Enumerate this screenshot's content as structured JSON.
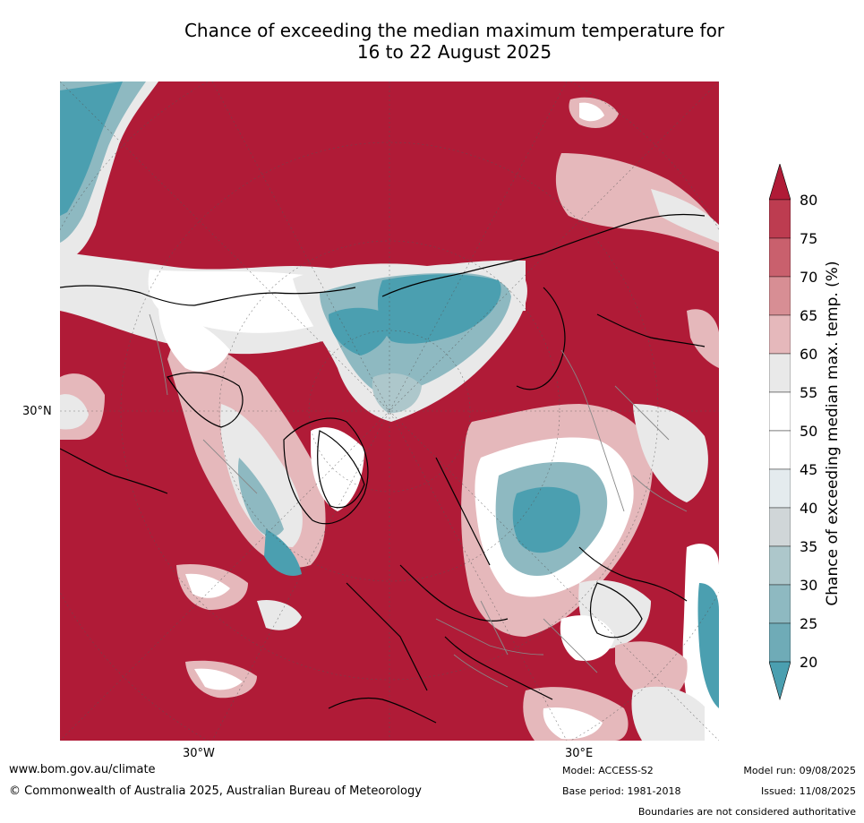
{
  "title": {
    "line1": "Chance of exceeding the median maximum temperature for",
    "line2": "16 to 22 August 2025"
  },
  "map": {
    "projection": "north-polar-stereographic",
    "lat_label": "30°N",
    "lon_labels": [
      "30°W",
      "30°E"
    ],
    "colors": {
      "red_80": "#b01b37",
      "red_75": "#bd3c50",
      "red_70": "#c9606d",
      "red_65": "#d78e94",
      "red_60": "#e5b8bb",
      "neutral_55": "#e9e9e9",
      "white_50": "#ffffff",
      "light_45": "#e4ebee",
      "grey_40": "#d0d6d8",
      "blue_35": "#adc7cb",
      "blue_30": "#8eb9c1",
      "blue_25": "#6fabb7",
      "blue_20": "#4b9fb0",
      "coastline": "#000000",
      "border": "#888888"
    }
  },
  "colorbar": {
    "title": "Chance of exceeding median max. temp. (%)",
    "ticks": [
      "80",
      "75",
      "70",
      "65",
      "60",
      "55",
      "50",
      "45",
      "40",
      "35",
      "30",
      "25",
      "20"
    ]
  },
  "footer": {
    "website": "www.bom.gov.au/climate",
    "copyright": "© Commonwealth of Australia 2025, Australian Bureau of Meteorology",
    "model": "Model: ACCESS-S2",
    "base_period": "Base period: 1981-2018",
    "model_run": "Model run: 09/08/2025",
    "issued": "Issued: 11/08/2025",
    "disclaimer": "Boundaries are not considered authoritative"
  }
}
